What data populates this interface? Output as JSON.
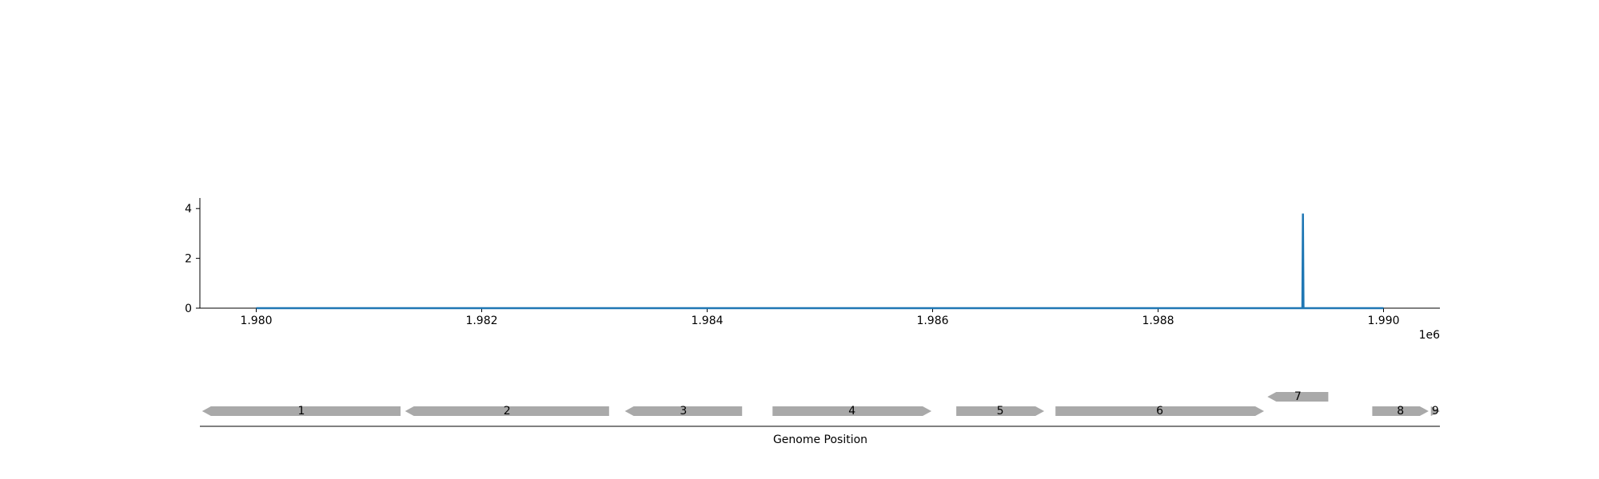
{
  "colors": {
    "coverage": "#1f77b4",
    "gene": "#a9a9a9",
    "axis": "#000000"
  },
  "chart_data": [
    {
      "type": "line",
      "x_offset_label": "1e6",
      "xlim": [
        1979500,
        1990500
      ],
      "ylim": [
        0,
        4.2
      ],
      "x_ticks": [
        1980000,
        1982000,
        1984000,
        1986000,
        1988000,
        1990000
      ],
      "x_tick_labels": [
        "1.980",
        "1.982",
        "1.984",
        "1.986",
        "1.988",
        "1.990"
      ],
      "y_ticks": [
        0,
        2,
        4
      ],
      "y_tick_labels": [
        "0",
        "2",
        "4"
      ],
      "grid": false,
      "series": [
        {
          "x": [
            1980000,
            1989280,
            1989285,
            1989290,
            1990000
          ],
          "y": [
            0,
            0,
            3.8,
            0,
            0
          ]
        }
      ]
    },
    {
      "type": "gene_track",
      "xlabel": "Genome Position",
      "xlim": [
        1979500,
        1990500
      ],
      "genes": [
        {
          "label": "1",
          "start": 1979520,
          "end": 1981280,
          "strand": -1,
          "row": 0
        },
        {
          "label": "2",
          "start": 1981320,
          "end": 1983130,
          "strand": -1,
          "row": 0
        },
        {
          "label": "3",
          "start": 1983270,
          "end": 1984310,
          "strand": -1,
          "row": 0
        },
        {
          "label": "4",
          "start": 1984580,
          "end": 1985990,
          "strand": 1,
          "row": 0
        },
        {
          "label": "5",
          "start": 1986210,
          "end": 1986990,
          "strand": 1,
          "row": 0
        },
        {
          "label": "6",
          "start": 1987090,
          "end": 1988940,
          "strand": 1,
          "row": 0
        },
        {
          "label": "7",
          "start": 1988970,
          "end": 1989510,
          "strand": -1,
          "row": 1
        },
        {
          "label": "8",
          "start": 1989900,
          "end": 1990400,
          "strand": 1,
          "row": 0
        },
        {
          "label": "9",
          "start": 1990420,
          "end": 1990500,
          "strand": 1,
          "row": 0
        }
      ]
    }
  ]
}
